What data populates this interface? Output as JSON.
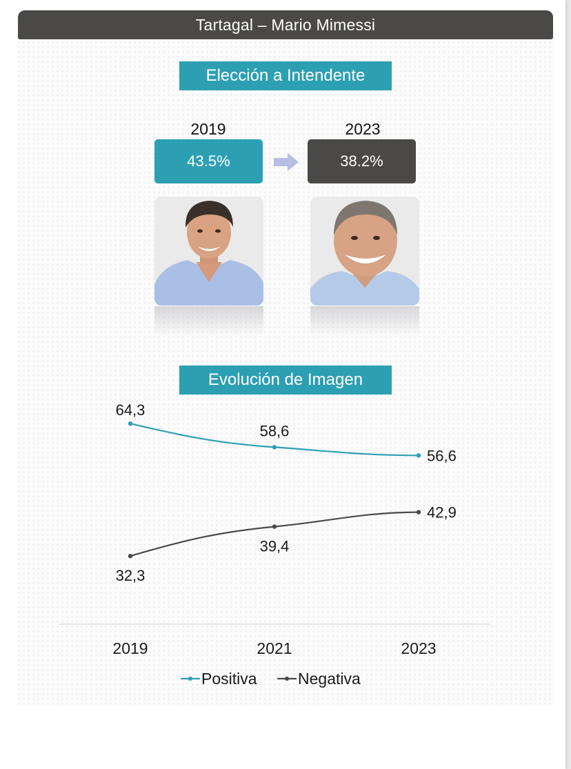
{
  "header": {
    "title": "Tartagal – Mario Mimessi"
  },
  "election": {
    "heading": "Elección a Intendente",
    "before": {
      "year": "2019",
      "value": "43.5%"
    },
    "after": {
      "year": "2023",
      "value": "38.2%"
    }
  },
  "image_section": {
    "heading": "Evolución de Imagen"
  },
  "colors": {
    "teal": "#2d9fb3",
    "dark": "#4a4948",
    "arrow": "#b7bde3"
  },
  "chart_data": {
    "type": "line",
    "title": "Evolución de Imagen",
    "categories": [
      "2019",
      "2021",
      "2023"
    ],
    "series": [
      {
        "name": "Positiva",
        "values": [
          64.3,
          58.6,
          56.6
        ],
        "labels": [
          "64,3",
          "58,6",
          "56,6"
        ],
        "color": "#2d9fb3"
      },
      {
        "name": "Negativa",
        "values": [
          32.3,
          39.4,
          42.9
        ],
        "labels": [
          "32,3",
          "39,4",
          "42,9"
        ],
        "color": "#4a4948"
      }
    ],
    "ylim": [
      25,
      70
    ],
    "grid": false,
    "legend": "bottom"
  }
}
